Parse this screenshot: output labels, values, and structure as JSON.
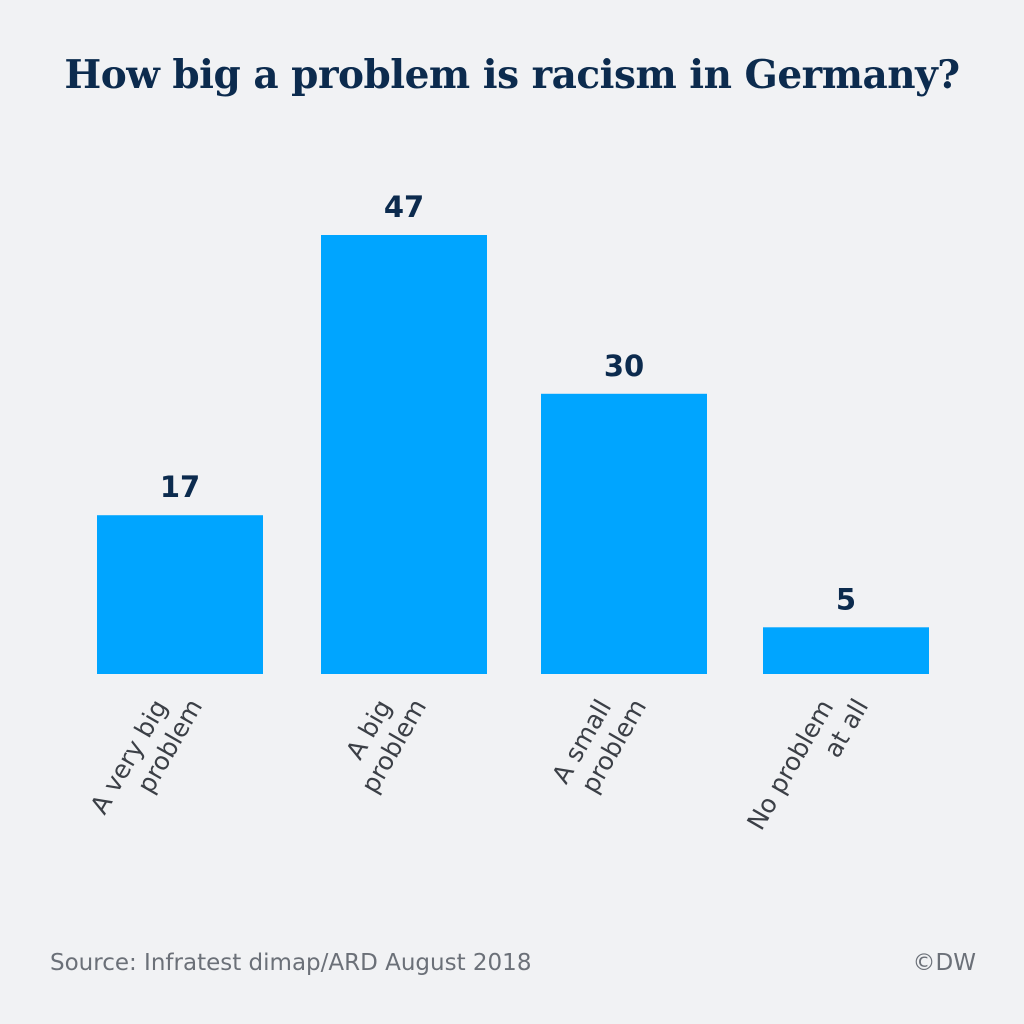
{
  "chart_data": {
    "type": "bar",
    "title": "How big a problem is racism in Germany?",
    "categories": [
      [
        "A very big",
        "problem"
      ],
      [
        "A big",
        "problem"
      ],
      [
        "A small",
        "problem"
      ],
      [
        "No problem",
        "at all"
      ]
    ],
    "values": [
      17,
      47,
      30,
      5
    ],
    "data_labels": [
      "17",
      "47",
      "30",
      "5"
    ],
    "xlabel": "",
    "ylabel": "",
    "ylim": [
      0,
      47
    ],
    "grid": false,
    "bar_color": "#00a5ff",
    "label_color": "#0c2b4e"
  },
  "footer": {
    "source": "Source: Infratest dimap/ARD August 2018",
    "copyright": "©DW"
  }
}
